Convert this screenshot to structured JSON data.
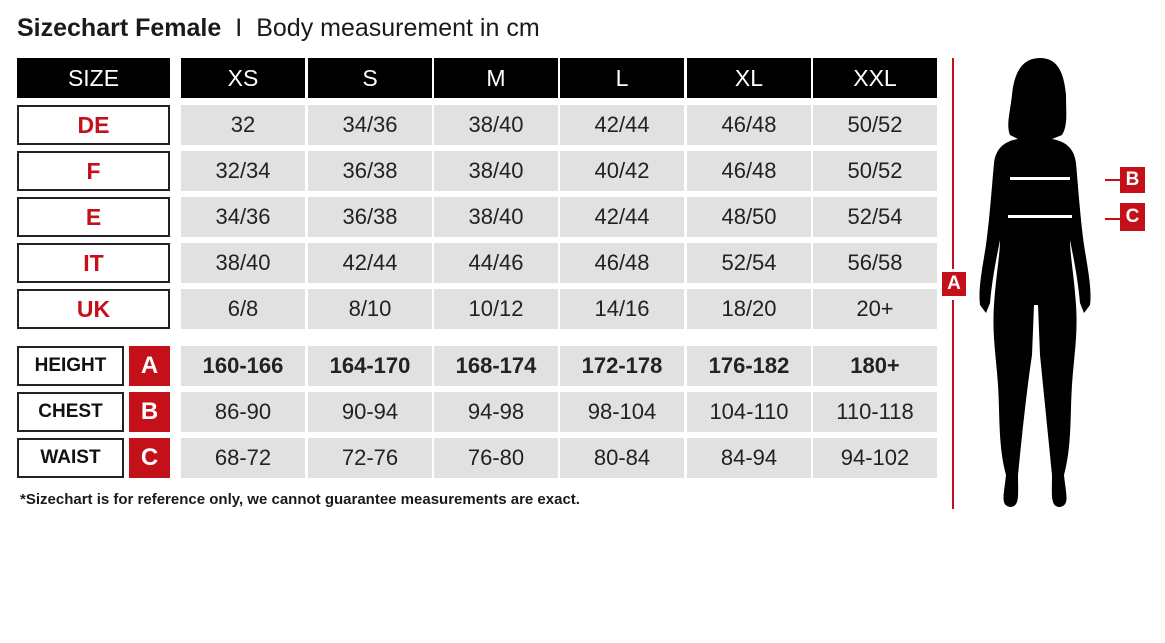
{
  "title": {
    "main": "Sizechart Female",
    "separator": "I",
    "sub": "Body measurement in cm"
  },
  "header": {
    "label": "SIZE",
    "sizes": [
      "XS",
      "S",
      "M",
      "L",
      "XL",
      "XXL"
    ]
  },
  "conversion_rows": [
    {
      "label": "DE",
      "values": [
        "32",
        "34/36",
        "38/40",
        "42/44",
        "46/48",
        "50/52"
      ]
    },
    {
      "label": "F",
      "values": [
        "32/34",
        "36/38",
        "38/40",
        "40/42",
        "46/48",
        "50/52"
      ]
    },
    {
      "label": "E",
      "values": [
        "34/36",
        "36/38",
        "38/40",
        "42/44",
        "48/50",
        "52/54"
      ]
    },
    {
      "label": "IT",
      "values": [
        "38/40",
        "42/44",
        "44/46",
        "46/48",
        "52/54",
        "56/58"
      ]
    },
    {
      "label": "UK",
      "values": [
        "6/8",
        "8/10",
        "10/12",
        "14/16",
        "18/20",
        "20+"
      ]
    }
  ],
  "measurement_rows": [
    {
      "label": "HEIGHT",
      "letter": "A",
      "values": [
        "160-166",
        "164-170",
        "168-174",
        "172-178",
        "176-182",
        "180+"
      ]
    },
    {
      "label": "CHEST",
      "letter": "B",
      "values": [
        "86-90",
        "90-94",
        "94-98",
        "98-104",
        "104-110",
        "110-118"
      ]
    },
    {
      "label": "WAIST",
      "letter": "C",
      "values": [
        "68-72",
        "72-76",
        "76-80",
        "80-84",
        "84-94",
        "94-102"
      ]
    }
  ],
  "footnote": "*Sizechart is for reference only, we cannot guarantee measurements are exact.",
  "figure": {
    "height_marker": "A",
    "chest_marker": "B",
    "waist_marker": "C",
    "icon": "female-silhouette-icon"
  },
  "colors": {
    "accent": "#c41018",
    "header_bg": "#000000",
    "cell_bg": "#e1e1e1"
  }
}
